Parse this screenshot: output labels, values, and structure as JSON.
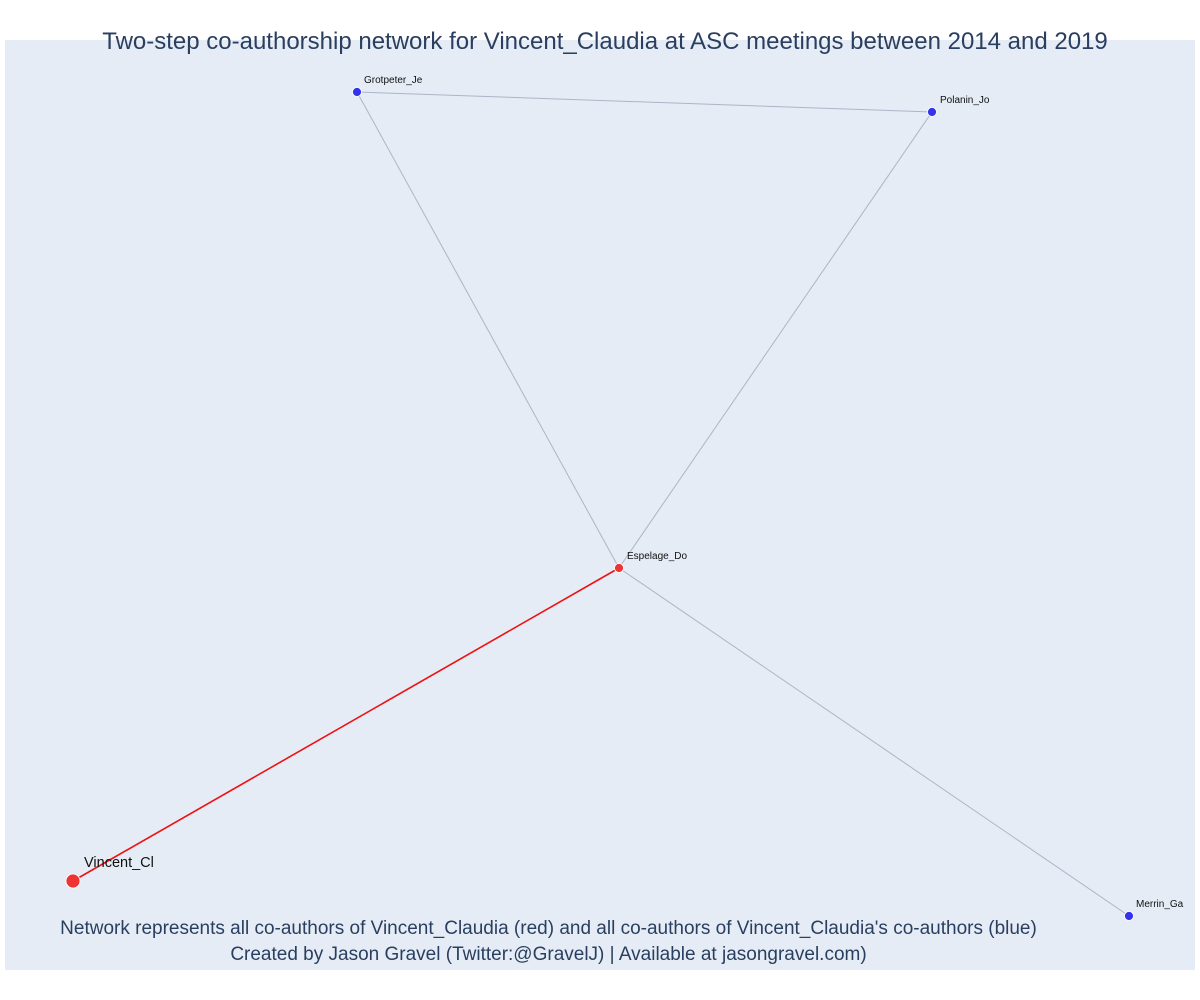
{
  "title": "Two-step co-authorship network for Vincent_Claudia at ASC meetings between 2014 and 2019",
  "caption": {
    "line1": "Network represents all co-authors of Vincent_Claudia (red) and all co-authors of Vincent_Claudia's co-authors (blue)",
    "line2": "Created by Jason Gravel (Twitter:@GravelJ) | Available at jasongravel.com)"
  },
  "colors": {
    "background": "#e5ecf6",
    "first_degree": "#ee3333",
    "second_degree": "#3333ee",
    "edge_first": "#ee1111",
    "edge_second": "#aeb4c6",
    "text": "#2a3f5f"
  },
  "nodes": [
    {
      "id": "vincent",
      "label": "Vincent_Cl",
      "group": "ego"
    },
    {
      "id": "espelage",
      "label": "Espelage_Do",
      "group": "co-author"
    },
    {
      "id": "grotpeter",
      "label": "Grotpeter_Je",
      "group": "co-author-of-co-author"
    },
    {
      "id": "polanin",
      "label": "Polanin_Jo",
      "group": "co-author-of-co-author"
    },
    {
      "id": "merrin",
      "label": "Merrin_Ga",
      "group": "co-author-of-co-author"
    }
  ],
  "edges": [
    {
      "from": "vincent",
      "to": "espelage",
      "type": "first"
    },
    {
      "from": "espelage",
      "to": "grotpeter",
      "type": "second"
    },
    {
      "from": "espelage",
      "to": "polanin",
      "type": "second"
    },
    {
      "from": "espelage",
      "to": "merrin",
      "type": "second"
    },
    {
      "from": "grotpeter",
      "to": "polanin",
      "type": "second"
    }
  ]
}
